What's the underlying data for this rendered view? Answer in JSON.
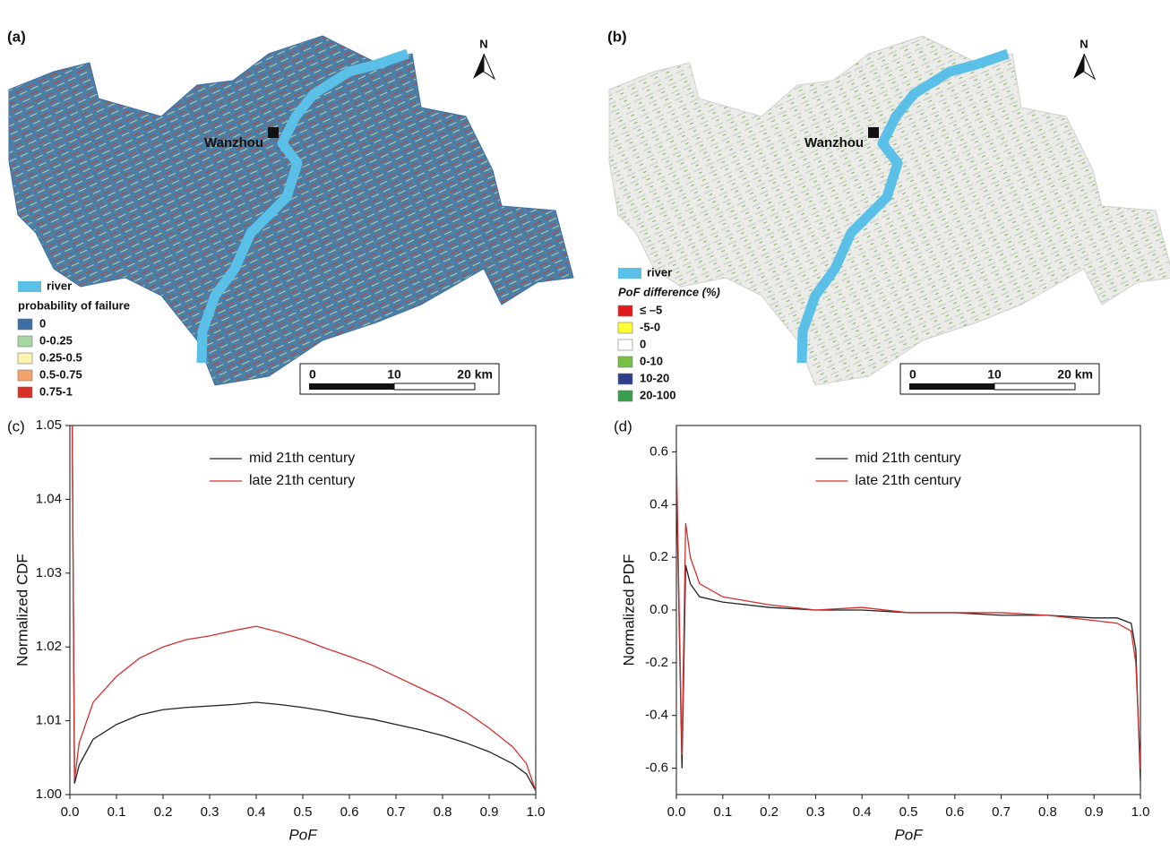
{
  "maps": [
    {
      "panel": "(a)",
      "north": "N",
      "city": "Wanzhou",
      "river": "river",
      "legend_title": "probability of failure",
      "legend": [
        {
          "label": "0",
          "color": "#3e6fa3"
        },
        {
          "label": "0-0.25",
          "color": "#a6d7a0"
        },
        {
          "label": "0.25-0.5",
          "color": "#fbf3b0"
        },
        {
          "label": "0.5-0.75",
          "color": "#f4a36a"
        },
        {
          "label": "0.75-1",
          "color": "#d73027"
        }
      ],
      "scale": [
        "0",
        "10",
        "20 km"
      ]
    },
    {
      "panel": "(b)",
      "north": "N",
      "city": "Wanzhou",
      "river": "river",
      "legend_title": "PoF difference (%)",
      "legend": [
        {
          "label": "≤ –5",
          "color": "#e31a1c"
        },
        {
          "label": "-5-0",
          "color": "#ffff33"
        },
        {
          "label": "0",
          "color": "#ffffff"
        },
        {
          "label": "0-10",
          "color": "#78c043"
        },
        {
          "label": "10-20",
          "color": "#2c3e8c"
        },
        {
          "label": "20-100",
          "color": "#3a9e4f"
        }
      ],
      "scale": [
        "0",
        "10",
        "20 km"
      ]
    }
  ],
  "chart_data": [
    {
      "type": "line",
      "panel": "(c)",
      "xlabel": "PoF",
      "ylabel": "Normalized CDF",
      "x": [
        0.005,
        0.01,
        0.02,
        0.05,
        0.1,
        0.15,
        0.2,
        0.25,
        0.3,
        0.35,
        0.4,
        0.45,
        0.5,
        0.55,
        0.6,
        0.65,
        0.7,
        0.75,
        0.8,
        0.85,
        0.9,
        0.95,
        0.98,
        1.0
      ],
      "series": [
        {
          "name": "mid 21th century",
          "color": "#222222",
          "values": [
            1.05,
            1.0015,
            1.004,
            1.0075,
            1.0095,
            1.0108,
            1.0115,
            1.0118,
            1.012,
            1.0122,
            1.0125,
            1.0122,
            1.0118,
            1.0113,
            1.0107,
            1.0102,
            1.0095,
            1.0088,
            1.008,
            1.007,
            1.0058,
            1.0042,
            1.0028,
            1.0005
          ]
        },
        {
          "name": "late 21th century",
          "color": "#d03030",
          "values": [
            1.05,
            1.002,
            1.007,
            1.0125,
            1.016,
            1.0185,
            1.02,
            1.021,
            1.0215,
            1.0222,
            1.0228,
            1.022,
            1.021,
            1.0198,
            1.0187,
            1.0175,
            1.016,
            1.0145,
            1.013,
            1.0112,
            1.009,
            1.0065,
            1.0042,
            1.0005
          ]
        }
      ],
      "xlim": [
        0,
        1
      ],
      "ylim": [
        1.0,
        1.05
      ],
      "xticks": [
        {
          "value": 0,
          "label": "0.0"
        },
        0.1,
        0.2,
        0.3,
        0.4,
        0.5,
        0.6,
        0.7,
        0.8,
        0.9,
        {
          "value": 1,
          "label": "1.0"
        }
      ],
      "yticks": [
        {
          "value": 1.0,
          "label": "1.00"
        },
        1.01,
        1.02,
        1.03,
        1.04,
        1.05
      ]
    },
    {
      "type": "line",
      "panel": "(d)",
      "xlabel": "PoF",
      "ylabel": "Normalized PDF",
      "x": [
        0,
        0.005,
        0.012,
        0.02,
        0.03,
        0.05,
        0.1,
        0.2,
        0.3,
        0.4,
        0.5,
        0.6,
        0.7,
        0.8,
        0.9,
        0.95,
        0.98,
        0.99,
        1.0
      ],
      "series": [
        {
          "name": "mid 21th century",
          "color": "#222222",
          "values": [
            0.5,
            0.05,
            -0.6,
            0.17,
            0.1,
            0.05,
            0.03,
            0.01,
            0.0,
            0.0,
            -0.01,
            -0.01,
            -0.02,
            -0.02,
            -0.03,
            -0.03,
            -0.05,
            -0.15,
            -0.65
          ]
        },
        {
          "name": "late 21th century",
          "color": "#d03030",
          "values": [
            0.6,
            0.1,
            -0.55,
            0.33,
            0.2,
            0.1,
            0.05,
            0.02,
            0.0,
            0.01,
            -0.01,
            -0.01,
            -0.01,
            -0.02,
            -0.04,
            -0.05,
            -0.08,
            -0.2,
            -0.6
          ]
        }
      ],
      "xlim": [
        0,
        1
      ],
      "ylim": [
        -0.7,
        0.7
      ],
      "xticks": [
        {
          "value": 0,
          "label": "0.0"
        },
        0.1,
        0.2,
        0.3,
        0.4,
        0.5,
        0.6,
        0.7,
        0.8,
        0.9,
        {
          "value": 1,
          "label": "1.0"
        }
      ],
      "yticks": [
        -0.6,
        -0.4,
        -0.2,
        {
          "value": 0,
          "label": "0.0"
        },
        0.2,
        0.4,
        0.6
      ]
    }
  ]
}
